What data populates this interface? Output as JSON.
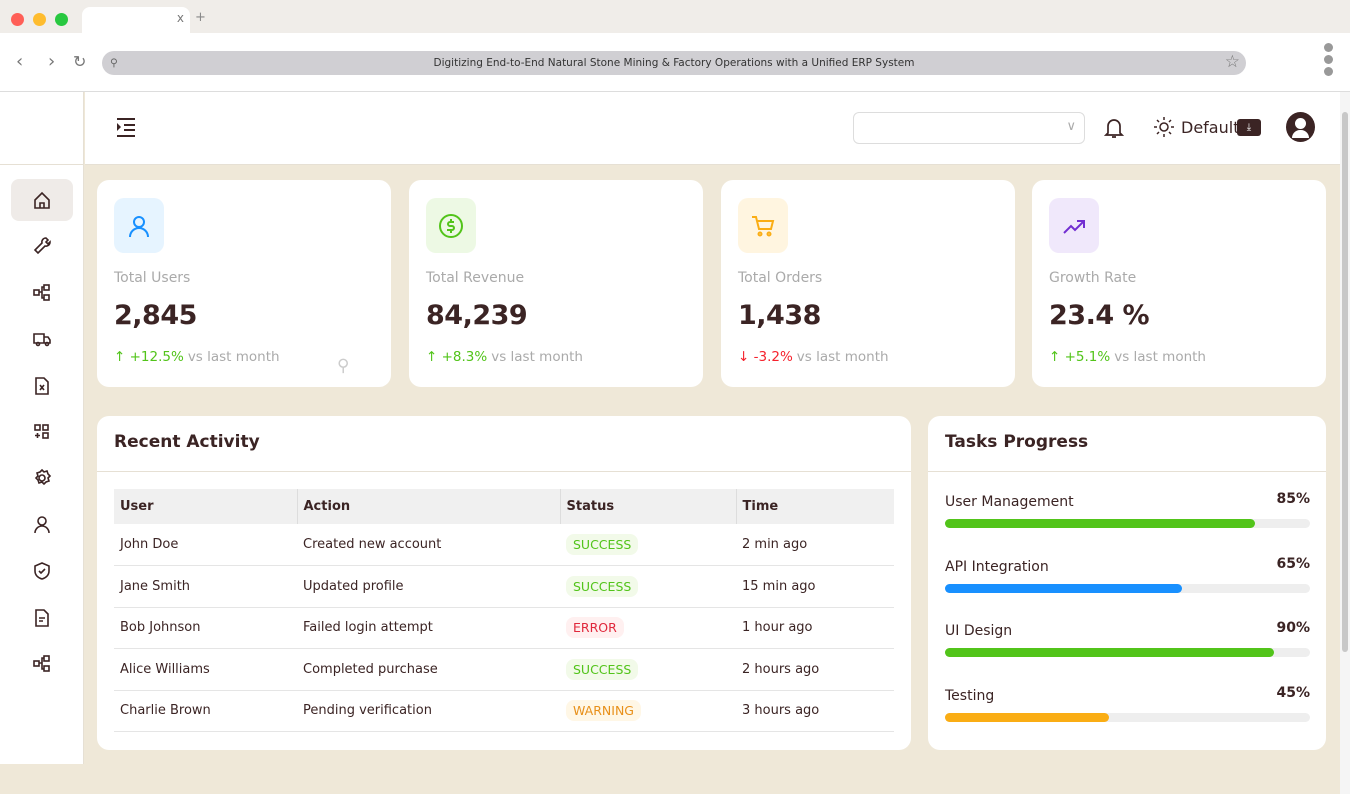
{
  "browser": {
    "address": "Digitizing End-to-End Natural Stone Mining & Factory Operations with a Unified ERP System",
    "tab_close": "x",
    "new_tab": "+"
  },
  "header": {
    "theme_label": "Default",
    "select_value": ""
  },
  "sidebar": {
    "items": [
      "home",
      "tools",
      "workflow",
      "delivery",
      "excel-file",
      "add-module",
      "settings",
      "user",
      "security",
      "document",
      "workflow-2"
    ]
  },
  "stats": [
    {
      "label": "Total Users",
      "value": "2,845",
      "trend": "+12.5%",
      "direction": "up",
      "vs": "vs last month",
      "icon": "user-icon",
      "color": "#1890ff",
      "bg": "#e6f4ff"
    },
    {
      "label": "Total Revenue",
      "value": "84,239",
      "trend": "+8.3%",
      "direction": "up",
      "vs": "vs last month",
      "icon": "dollar-icon",
      "color": "#52c41a",
      "bg": "#edf9e4"
    },
    {
      "label": "Total Orders",
      "value": "1,438",
      "trend": "-3.2%",
      "direction": "down",
      "vs": "vs last month",
      "icon": "cart-icon",
      "color": "#faad14",
      "bg": "#fff5e0"
    },
    {
      "label": "Growth Rate",
      "value": "23.4 %",
      "trend": "+5.1%",
      "direction": "up",
      "vs": "vs last month",
      "icon": "trend-icon",
      "color": "#722ed1",
      "bg": "#f0e8fb"
    }
  ],
  "activity": {
    "title": "Recent Activity",
    "columns": [
      "User",
      "Action",
      "Status",
      "Time"
    ],
    "rows": [
      {
        "user": "John Doe",
        "action": "Created new account",
        "status": "SUCCESS",
        "time": "2 min ago"
      },
      {
        "user": "Jane Smith",
        "action": "Updated profile",
        "status": "SUCCESS",
        "time": "15 min ago"
      },
      {
        "user": "Bob Johnson",
        "action": "Failed login attempt",
        "status": "ERROR",
        "time": "1 hour ago"
      },
      {
        "user": "Alice Williams",
        "action": "Completed purchase",
        "status": "SUCCESS",
        "time": "2 hours ago"
      },
      {
        "user": "Charlie Brown",
        "action": "Pending verification",
        "status": "WARNING",
        "time": "3 hours ago"
      }
    ]
  },
  "tasks": {
    "title": "Tasks Progress",
    "items": [
      {
        "name": "User Management",
        "percent": 85,
        "label": "85%",
        "color": "#52c41a"
      },
      {
        "name": "API Integration",
        "percent": 65,
        "label": "65%",
        "color": "#1890ff"
      },
      {
        "name": "UI Design",
        "percent": 90,
        "label": "90%",
        "color": "#52c41a"
      },
      {
        "name": "Testing",
        "percent": 45,
        "label": "45%",
        "color": "#faad14"
      }
    ]
  }
}
